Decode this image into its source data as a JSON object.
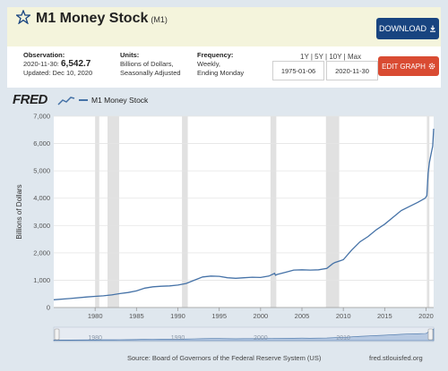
{
  "header": {
    "title": "M1 Money Stock",
    "series_code": "(M1)",
    "download_label": "DOWNLOAD",
    "star_icon": "star-outline-icon"
  },
  "info": {
    "observation_label": "Observation:",
    "observation_date": "2020-11-30:",
    "observation_value": "6,542.7",
    "updated": "Updated: Dec 10, 2020",
    "units_label": "Units:",
    "units_line1": "Billions of Dollars,",
    "units_line2": "Seasonally Adjusted",
    "frequency_label": "Frequency:",
    "frequency_line1": "Weekly,",
    "frequency_line2": "Ending Monday",
    "range_links": [
      "1Y",
      "5Y",
      "10Y",
      "Max"
    ],
    "start_date": "1975-01-06",
    "end_date": "2020-11-30",
    "edit_label": "EDIT GRAPH"
  },
  "chart": {
    "logo": "FRED",
    "legend_label": "M1 Money Stock",
    "source": "Source: Board of Governors of the Federal Reserve System (US)",
    "url": "fred.stlouisfed.org",
    "navigator_labels": [
      "1980",
      "1990",
      "2000",
      "2010"
    ]
  },
  "colors": {
    "line": "#4572a7",
    "recession": "#e1e1e1",
    "download_btn": "#184480",
    "edit_btn": "#d94b32",
    "header_bg": "#f4f4dc"
  },
  "chart_data": {
    "type": "line",
    "title": "M1 Money Stock",
    "ylabel": "Billions of Dollars",
    "xlabel": "",
    "xlim": [
      1975.0,
      2020.92
    ],
    "ylim": [
      0,
      7000
    ],
    "x_ticks": [
      1980,
      1985,
      1990,
      1995,
      2000,
      2005,
      2010,
      2015,
      2020
    ],
    "y_ticks": [
      0,
      1000,
      2000,
      3000,
      4000,
      5000,
      6000,
      7000
    ],
    "y_tick_labels": [
      "0",
      "1,000",
      "2,000",
      "3,000",
      "4,000",
      "5,000",
      "6,000",
      "7,000"
    ],
    "grid": true,
    "recessions": [
      [
        1980.0,
        1980.5
      ],
      [
        1981.5,
        1982.9
      ],
      [
        1990.5,
        1991.2
      ],
      [
        2001.2,
        2001.9
      ],
      [
        2007.9,
        2009.5
      ],
      [
        2020.1,
        2020.4
      ]
    ],
    "series": [
      {
        "name": "M1 Money Stock",
        "x": [
          1975.0,
          1977,
          1979,
          1980,
          1981,
          1982,
          1983,
          1984,
          1985,
          1986,
          1987,
          1988,
          1989,
          1990,
          1991,
          1992,
          1993,
          1994,
          1995,
          1996,
          1997,
          1998,
          1999,
          2000,
          2001,
          2001.7,
          2001.8,
          2002,
          2003,
          2004,
          2005,
          2006,
          2007,
          2008,
          2008.7,
          2009,
          2010,
          2011,
          2012,
          2013,
          2014,
          2015,
          2016,
          2017,
          2018,
          2019,
          2019.9,
          2020.1,
          2020.25,
          2020.4,
          2020.6,
          2020.8,
          2020.92
        ],
        "values": [
          285,
          330,
          385,
          410,
          430,
          460,
          510,
          550,
          610,
          710,
          760,
          780,
          790,
          820,
          880,
          1000,
          1120,
          1150,
          1140,
          1090,
          1070,
          1090,
          1110,
          1100,
          1150,
          1250,
          1180,
          1210,
          1290,
          1370,
          1380,
          1370,
          1380,
          1430,
          1600,
          1650,
          1750,
          2100,
          2400,
          2600,
          2850,
          3050,
          3300,
          3550,
          3700,
          3850,
          4000,
          4100,
          4900,
          5300,
          5600,
          5900,
          6542.7
        ]
      }
    ]
  }
}
